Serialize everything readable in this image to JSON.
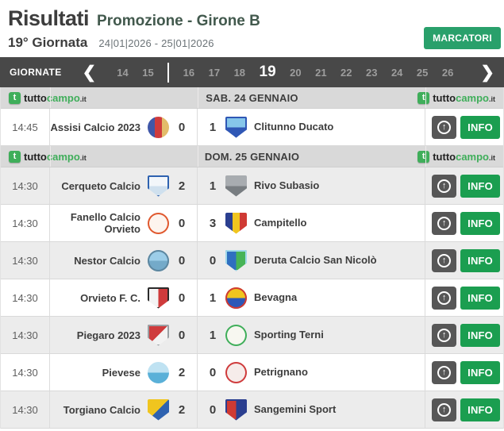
{
  "header": {
    "title": "Risultati",
    "subtitle": "Promozione - Girone B",
    "matchday": "19° Giornata",
    "date_range": "24|01|2026 - 25|01|2026",
    "marcatori_label": "MARCATORI"
  },
  "rounds_nav": {
    "label": "GIORNATE",
    "chevron_left": "❮",
    "chevron_right": "❯",
    "numbers": [
      "14",
      "15",
      "16",
      "17",
      "18",
      "19",
      "20",
      "21",
      "22",
      "23",
      "24",
      "25",
      "26"
    ],
    "current": "19"
  },
  "brand": {
    "icon_letter": "t",
    "part1": "tutto",
    "part2": "campo",
    "part3": ".it"
  },
  "actions": {
    "info_label": "INFO",
    "arrow_glyph": "↑"
  },
  "colors": {
    "brand_green": "#3fae5a",
    "info_button_green": "#1b9e50",
    "marcatori_button_green": "#29a06b",
    "nav_bar_bg": "#484848",
    "day_header_bg": "#d9d9d9",
    "alt_row_bg": "#ececec"
  },
  "days": [
    {
      "label": "SAB. 24 GENNAIO",
      "matches": [
        {
          "time": "14:45",
          "home": {
            "name": "Assisi Calcio 2023",
            "score": "0",
            "logo": {
              "shape": "circle",
              "colors": [
                "#3f57a8",
                "#cf3b3c",
                "#e3bc6a"
              ]
            }
          },
          "away": {
            "name": "Clitunno Ducato",
            "score": "1",
            "logo": {
              "shape": "shield",
              "dir": "v",
              "colors": [
                "#86c6ea",
                "#2f57b5"
              ],
              "border": "#2f57b5"
            }
          }
        }
      ]
    },
    {
      "label": "DOM. 25 GENNAIO",
      "matches": [
        {
          "time": "14:30",
          "home": {
            "name": "Cerqueto Calcio",
            "score": "2",
            "logo": {
              "shape": "shield",
              "dir": "v",
              "colors": [
                "#f2f6fa",
                "#cfe0ee"
              ],
              "border": "#2e62b0"
            }
          },
          "away": {
            "name": "Rivo Subasio",
            "score": "1",
            "logo": {
              "shape": "shield",
              "dir": "v",
              "colors": [
                "#a8acb0",
                "#787d81"
              ]
            }
          }
        },
        {
          "time": "14:30",
          "home": {
            "name": "Fanello Calcio Orvieto",
            "score": "0",
            "logo": {
              "shape": "circle",
              "colors": [
                "#fdf4ee"
              ],
              "border": "#e0582e"
            }
          },
          "away": {
            "name": "Campitello",
            "score": "3",
            "logo": {
              "shape": "shield",
              "colors": [
                "#2b3f90",
                "#f0c51f",
                "#cf3a33"
              ]
            }
          }
        },
        {
          "time": "14:30",
          "home": {
            "name": "Nestor Calcio",
            "score": "0",
            "logo": {
              "shape": "circle",
              "dir": "v",
              "colors": [
                "#9ccde8",
                "#74aac9"
              ],
              "border": "#5d87a0"
            }
          },
          "away": {
            "name": "Deruta Calcio San Nicolò",
            "score": "0",
            "logo": {
              "shape": "shield",
              "colors": [
                "#2f6fc0",
                "#47b457"
              ],
              "border": "#9fd8ea"
            }
          }
        },
        {
          "time": "14:30",
          "home": {
            "name": "Orvieto F. C.",
            "score": "0",
            "logo": {
              "shape": "shield",
              "colors": [
                "#f4f4f4",
                "#cf3b3c"
              ],
              "border": "#2b2b2b"
            }
          },
          "away": {
            "name": "Bevagna",
            "score": "1",
            "logo": {
              "shape": "circle",
              "dir": "v",
              "colors": [
                "#f0c51f",
                "#2b58b8"
              ],
              "border": "#cf3a33"
            }
          }
        },
        {
          "time": "14:30",
          "home": {
            "name": "Piegaro 2023",
            "score": "0",
            "logo": {
              "shape": "shield",
              "dir": "d",
              "colors": [
                "#cf3b3c",
                "#f2f2f2"
              ],
              "border": "#9aa0a4"
            }
          },
          "away": {
            "name": "Sporting Terni",
            "score": "1",
            "logo": {
              "shape": "circle",
              "colors": [
                "#f7f7f0"
              ],
              "border": "#3fae5a"
            }
          }
        },
        {
          "time": "14:30",
          "home": {
            "name": "Pievese",
            "score": "2",
            "logo": {
              "shape": "circle",
              "dir": "v",
              "colors": [
                "#bfe2f2",
                "#5ab0d8"
              ]
            }
          },
          "away": {
            "name": "Petrignano",
            "score": "0",
            "logo": {
              "shape": "circle",
              "colors": [
                "#f6ecea"
              ],
              "border": "#cf3b3c"
            }
          }
        },
        {
          "time": "14:30",
          "home": {
            "name": "Torgiano Calcio",
            "score": "2",
            "logo": {
              "shape": "shield",
              "dir": "d",
              "colors": [
                "#f0c51f",
                "#2e62b0"
              ]
            }
          },
          "away": {
            "name": "Sangemini Sport",
            "score": "0",
            "logo": {
              "shape": "shield",
              "colors": [
                "#cf3a33",
                "#2b3f90"
              ],
              "border": "#2b3f90"
            }
          }
        }
      ]
    }
  ]
}
